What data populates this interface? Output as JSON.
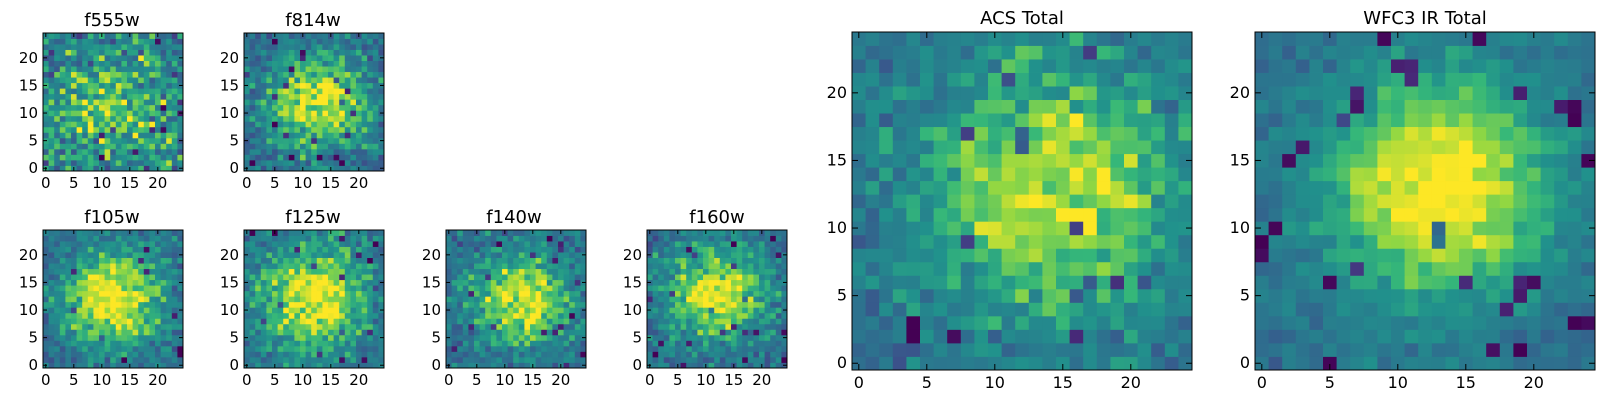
{
  "chart_data": [
    {
      "type": "heatmap",
      "title": "f555w",
      "xticks": [
        "0",
        "5",
        "10",
        "15",
        "20"
      ],
      "yticks": [
        "0",
        "5",
        "10",
        "15",
        "20"
      ],
      "xlim": [
        0,
        25
      ],
      "ylim": [
        0,
        25
      ],
      "grid": false,
      "colormap": "viridis"
    },
    {
      "type": "heatmap",
      "title": "f814w",
      "xticks": [
        "0",
        "5",
        "10",
        "15",
        "20"
      ],
      "yticks": [
        "0",
        "5",
        "10",
        "15",
        "20"
      ],
      "xlim": [
        0,
        25
      ],
      "ylim": [
        0,
        25
      ],
      "grid": false,
      "colormap": "viridis"
    },
    {
      "type": "heatmap",
      "title": "f105w",
      "xticks": [
        "0",
        "5",
        "10",
        "15",
        "20"
      ],
      "yticks": [
        "0",
        "5",
        "10",
        "15",
        "20"
      ],
      "xlim": [
        0,
        25
      ],
      "ylim": [
        0,
        25
      ],
      "grid": false,
      "colormap": "viridis"
    },
    {
      "type": "heatmap",
      "title": "f125w",
      "xticks": [
        "0",
        "5",
        "10",
        "15",
        "20"
      ],
      "yticks": [
        "0",
        "5",
        "10",
        "15",
        "20"
      ],
      "xlim": [
        0,
        25
      ],
      "ylim": [
        0,
        25
      ],
      "grid": false,
      "colormap": "viridis"
    },
    {
      "type": "heatmap",
      "title": "f140w",
      "xticks": [
        "0",
        "5",
        "10",
        "15",
        "20"
      ],
      "yticks": [
        "0",
        "5",
        "10",
        "15",
        "20"
      ],
      "xlim": [
        0,
        25
      ],
      "ylim": [
        0,
        25
      ],
      "grid": false,
      "colormap": "viridis"
    },
    {
      "type": "heatmap",
      "title": "f160w",
      "xticks": [
        "0",
        "5",
        "10",
        "15",
        "20"
      ],
      "yticks": [
        "0",
        "5",
        "10",
        "15",
        "20"
      ],
      "xlim": [
        0,
        25
      ],
      "ylim": [
        0,
        25
      ],
      "grid": false,
      "colormap": "viridis"
    },
    {
      "type": "heatmap",
      "title": "ACS Total",
      "xticks": [
        "0",
        "5",
        "10",
        "15",
        "20"
      ],
      "yticks": [
        "0",
        "5",
        "10",
        "15",
        "20"
      ],
      "xlim": [
        0,
        25
      ],
      "ylim": [
        0,
        25
      ],
      "grid": false,
      "colormap": "viridis"
    },
    {
      "type": "heatmap",
      "title": "WFC3 IR Total",
      "xticks": [
        "0",
        "5",
        "10",
        "15",
        "20"
      ],
      "yticks": [
        "0",
        "5",
        "10",
        "15",
        "20"
      ],
      "xlim": [
        0,
        25
      ],
      "ylim": [
        0,
        25
      ],
      "grid": false,
      "colormap": "viridis"
    }
  ]
}
